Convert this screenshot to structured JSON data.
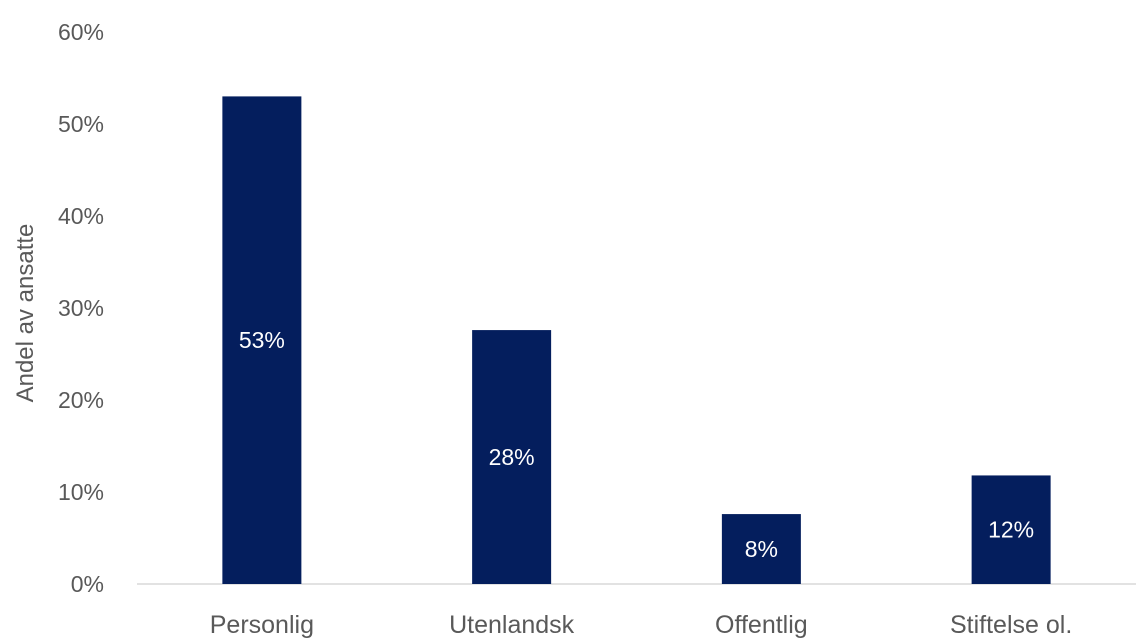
{
  "chart_data": {
    "type": "bar",
    "categories": [
      "Personlig",
      "Utenlandsk",
      "Offentlig",
      "Stiftelse ol."
    ],
    "values": [
      53,
      27.6,
      7.6,
      11.8
    ],
    "data_labels": [
      "53%",
      "28%",
      "8%",
      "12%"
    ],
    "ylabel": "Andel av ansatte",
    "ylim": [
      0,
      60
    ],
    "yticks": [
      0,
      10,
      20,
      30,
      40,
      50,
      60
    ],
    "ytick_labels": [
      "0%",
      "10%",
      "20%",
      "30%",
      "40%",
      "50%",
      "60%"
    ],
    "bar_color": "#041e5d",
    "grid": false,
    "legend": "none"
  }
}
